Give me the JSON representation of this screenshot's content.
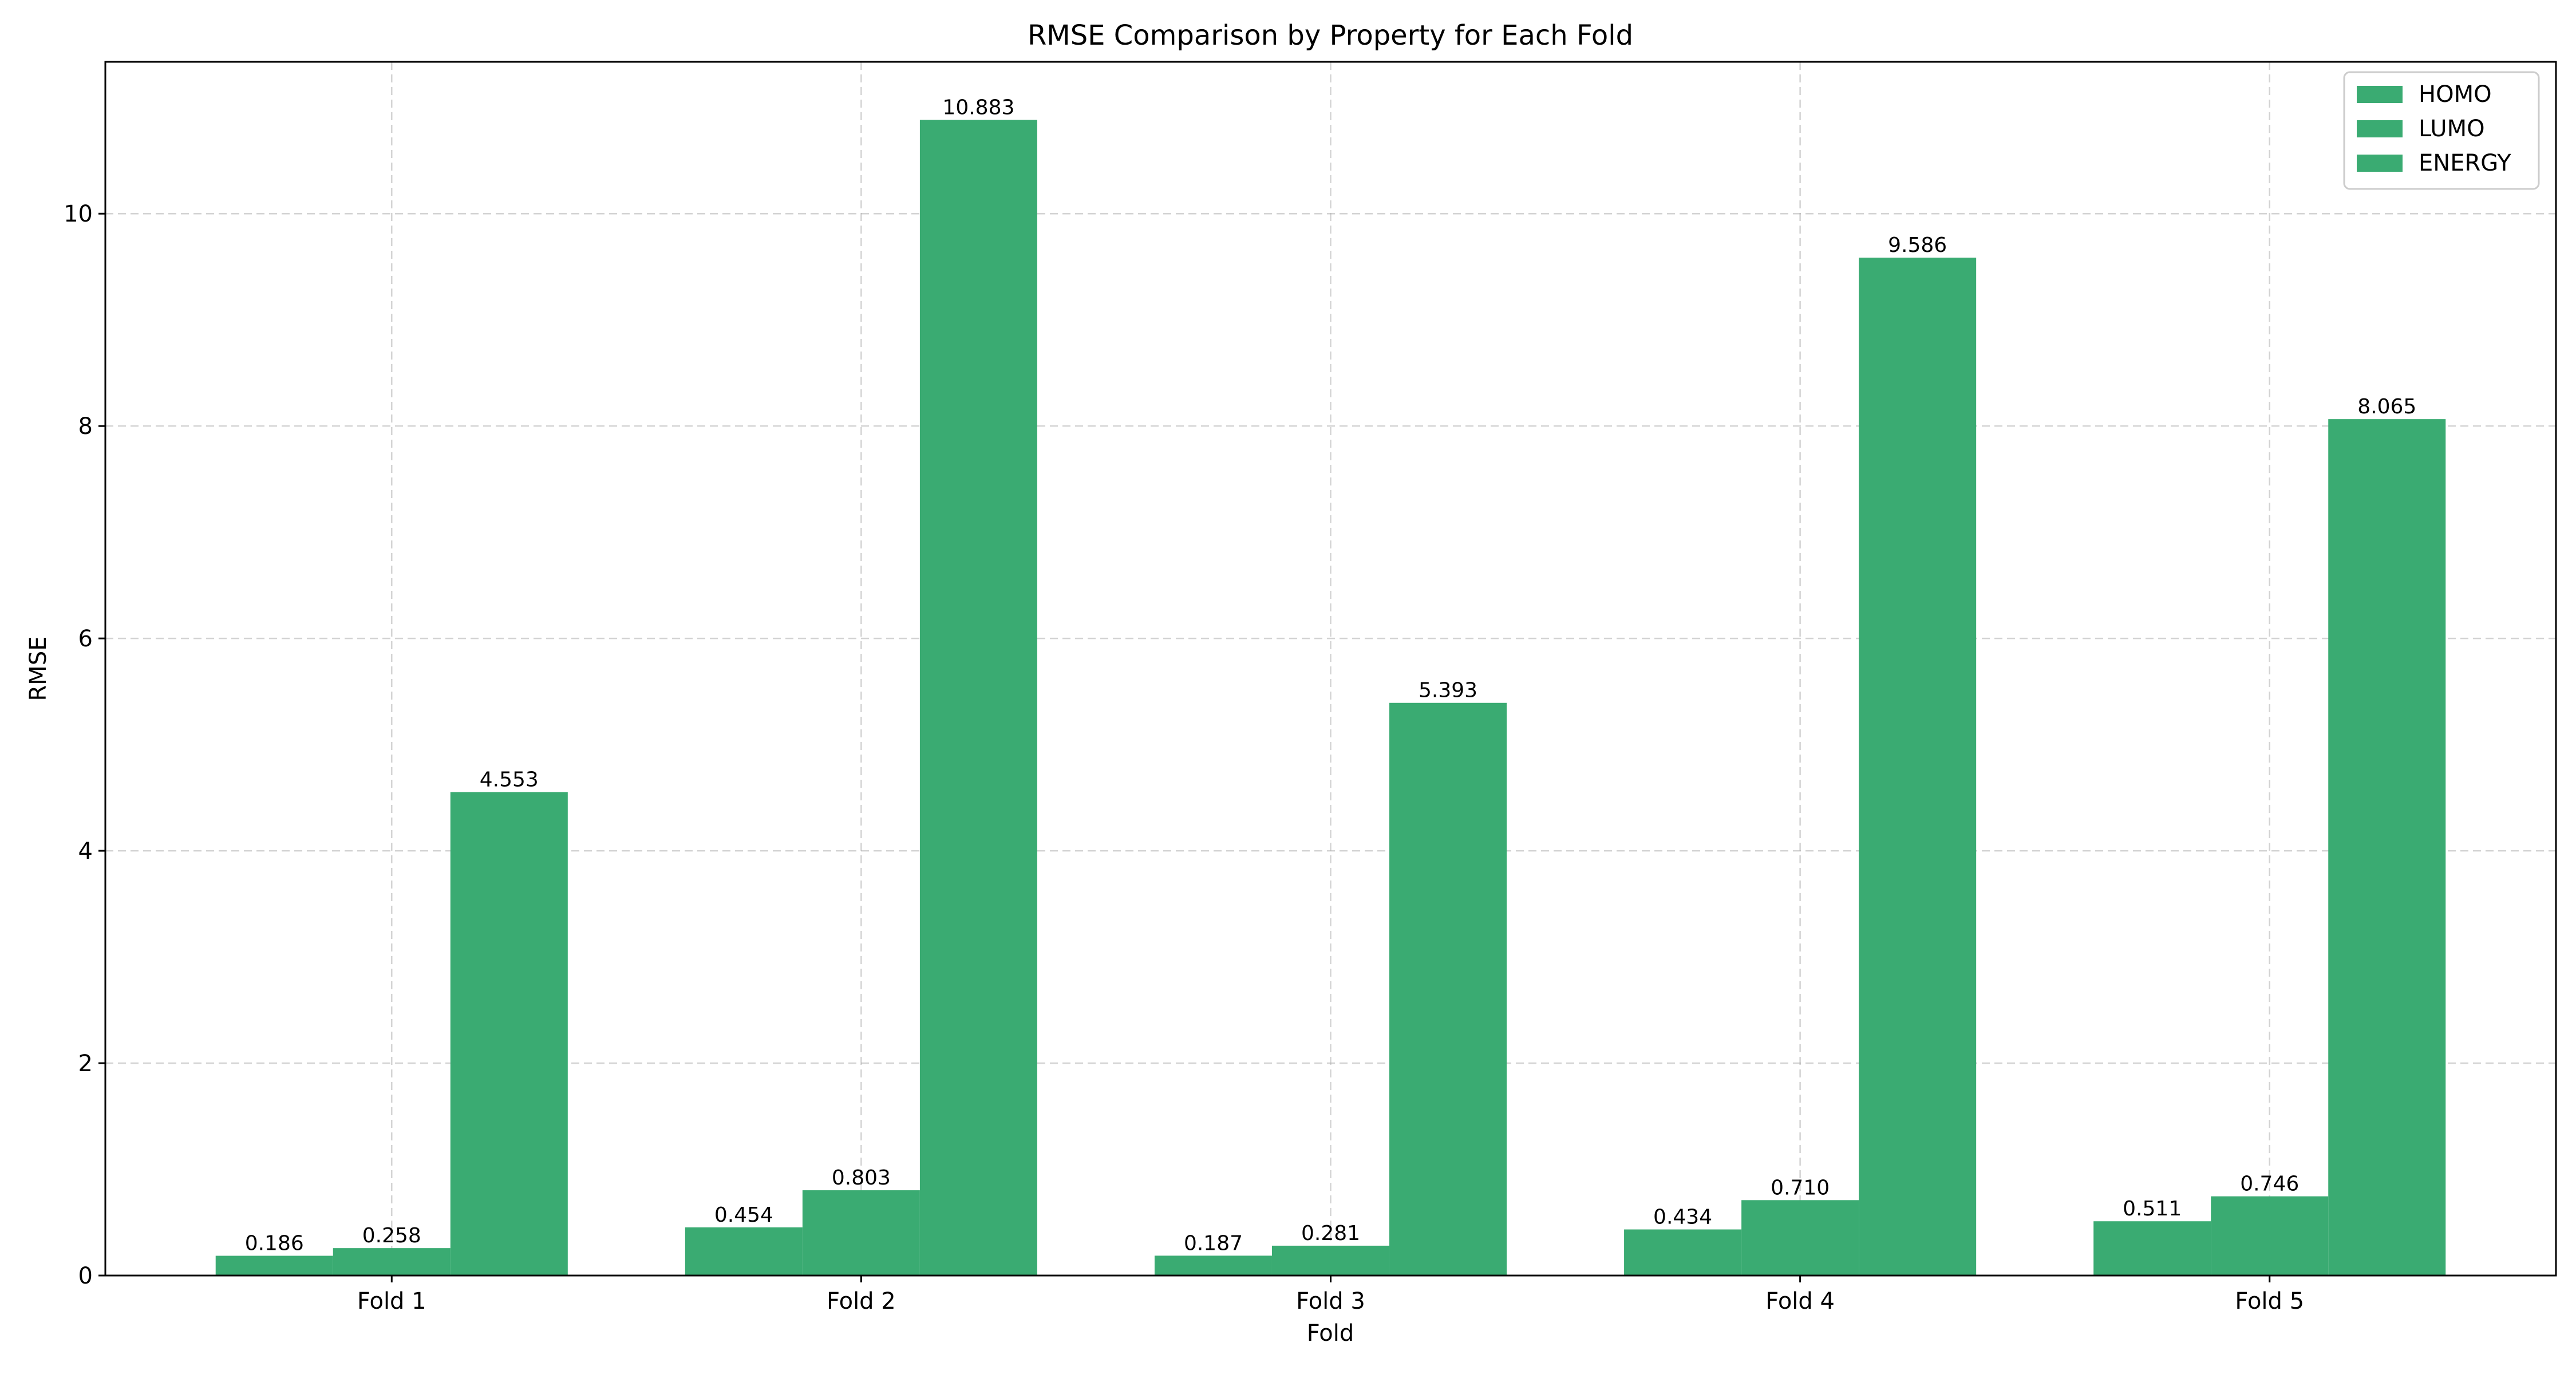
{
  "chart_data": {
    "type": "bar",
    "title": "RMSE Comparison by Property for Each Fold",
    "xlabel": "Fold",
    "ylabel": "RMSE",
    "categories": [
      "Fold 1",
      "Fold 2",
      "Fold 3",
      "Fold 4",
      "Fold 5"
    ],
    "ylim": [
      0,
      11.43
    ],
    "yticks": [
      0,
      2,
      4,
      6,
      8,
      10
    ],
    "grid": true,
    "legend_position": "top-right",
    "bar_color": "#3aab72",
    "series": [
      {
        "name": "HOMO",
        "values": [
          0.186,
          0.454,
          0.187,
          0.434,
          0.511
        ],
        "labels": [
          "0.186",
          "0.454",
          "0.187",
          "0.434",
          "0.511"
        ]
      },
      {
        "name": "LUMO",
        "values": [
          0.258,
          0.803,
          0.281,
          0.71,
          0.746
        ],
        "labels": [
          "0.258",
          "0.803",
          "0.281",
          "0.710",
          "0.746"
        ]
      },
      {
        "name": "ENERGY",
        "values": [
          4.553,
          10.883,
          5.393,
          9.586,
          8.065
        ],
        "labels": [
          "4.553",
          "10.883",
          "5.393",
          "9.586",
          "8.065"
        ]
      }
    ]
  }
}
